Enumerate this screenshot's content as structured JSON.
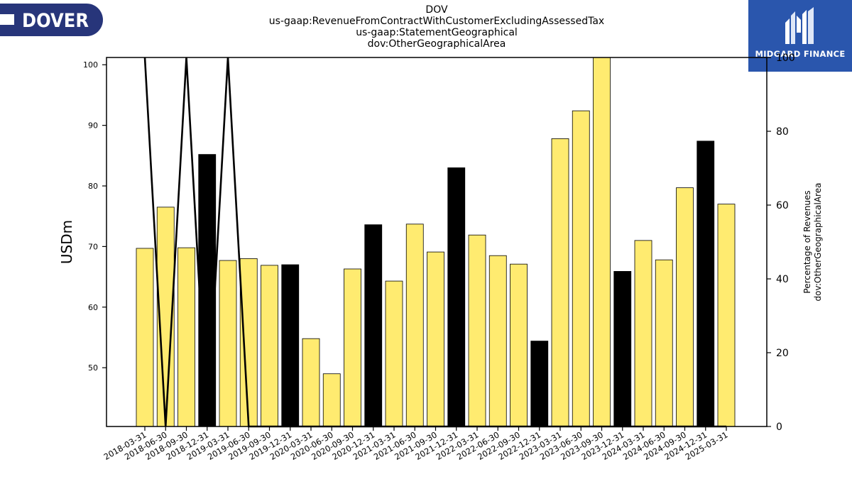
{
  "logos": {
    "left_text": "DOVER",
    "right_text": "MIDGARD FINANCE"
  },
  "colors": {
    "bar_primary": "#ffeb70",
    "bar_secondary": "#000000",
    "line": "#000000",
    "brand_left": "#27357a",
    "brand_right": "#2a56ad"
  },
  "chart_data": {
    "type": "bar",
    "title": [
      "DOV",
      "us-gaap:RevenueFromContractWithCustomerExcludingAssessedTax",
      "us-gaap:StatementGeographical",
      "dov:OtherGeographicalArea"
    ],
    "ylabel": "USDm",
    "y2label": [
      "Percentage of Revenues",
      "dov:OtherGeographicalArea"
    ],
    "ylim": [
      40.3,
      101.2
    ],
    "y2lim": [
      0,
      100
    ],
    "yticks": [
      50,
      60,
      70,
      80,
      90,
      100
    ],
    "y2ticks": [
      0,
      20,
      40,
      60,
      80,
      100
    ],
    "categories": [
      "2018-03-31",
      "2018-06-30",
      "2018-09-30",
      "2018-12-31",
      "2019-03-31",
      "2019-06-30",
      "2019-09-30",
      "2019-12-31",
      "2020-03-31",
      "2020-06-30",
      "2020-09-30",
      "2020-12-31",
      "2021-03-31",
      "2021-06-30",
      "2021-09-30",
      "2021-12-31",
      "2022-03-31",
      "2022-06-30",
      "2022-09-30",
      "2022-12-31",
      "2023-03-31",
      "2023-06-30",
      "2023-09-30",
      "2023-12-31",
      "2024-03-31",
      "2024-06-30",
      "2024-09-30",
      "2024-12-31",
      "2025-03-31"
    ],
    "series": [
      {
        "kind": "bar",
        "axis": "left",
        "values": [
          69.7,
          76.5,
          69.8,
          85.2,
          67.7,
          68.0,
          66.9,
          67.0,
          54.8,
          49.0,
          66.3,
          73.6,
          64.3,
          73.7,
          69.1,
          83.0,
          71.9,
          68.5,
          67.1,
          54.4,
          87.8,
          92.4,
          101.5,
          65.9,
          71.0,
          67.8,
          79.7,
          87.4,
          77.0
        ],
        "colors": [
          "#ffeb70",
          "#ffeb70",
          "#ffeb70",
          "#000000",
          "#ffeb70",
          "#ffeb70",
          "#ffeb70",
          "#000000",
          "#ffeb70",
          "#ffeb70",
          "#ffeb70",
          "#000000",
          "#ffeb70",
          "#ffeb70",
          "#ffeb70",
          "#000000",
          "#ffeb70",
          "#ffeb70",
          "#ffeb70",
          "#000000",
          "#ffeb70",
          "#ffeb70",
          "#ffeb70",
          "#000000",
          "#ffeb70",
          "#ffeb70",
          "#ffeb70",
          "#000000",
          "#ffeb70"
        ]
      },
      {
        "kind": "line",
        "axis": "right",
        "values": [
          100,
          0,
          100,
          0,
          100,
          0,
          0,
          0,
          0,
          0,
          0,
          0,
          0,
          0,
          0,
          0,
          0,
          0,
          0,
          0,
          0,
          0,
          0,
          0,
          0,
          0,
          0,
          0,
          0
        ]
      }
    ],
    "grid": false,
    "legend": "none"
  }
}
